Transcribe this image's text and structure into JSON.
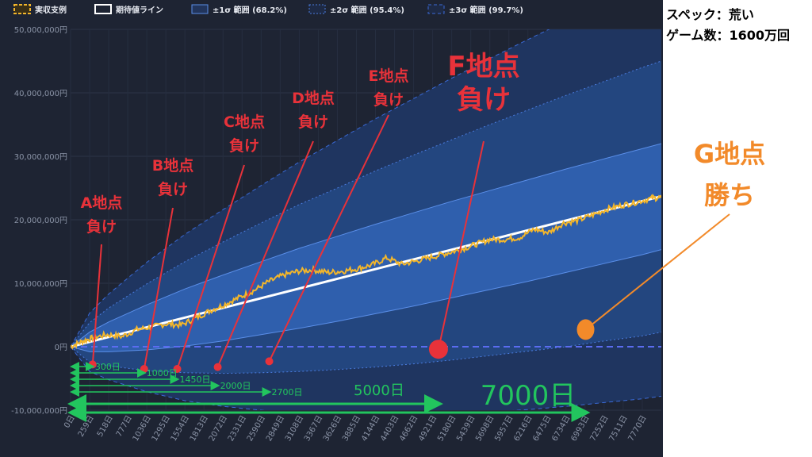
{
  "spec": {
    "line1": "スペック：荒い",
    "line2": "ゲーム数：1600万回"
  },
  "colors": {
    "background": "#1e2433",
    "actual": "#f3b62b",
    "expected": "#ffffff",
    "band1": "#2f5fad",
    "band2": "#23467f",
    "band3": "#1f3560",
    "zero_line": "#5b6cf0",
    "red": "#e8323a",
    "orange": "#f28a2a",
    "green": "#22c55e"
  },
  "chart_data": {
    "type": "line",
    "title": "",
    "legend": {
      "placement": "top-left",
      "items": [
        {
          "name": "実収支例",
          "icon": "dashed-box-gold"
        },
        {
          "name": "期待値ライン",
          "icon": "box-white"
        },
        {
          "name": "±1σ 範囲 (68.2%)",
          "icon": "box-blue"
        },
        {
          "name": "±2σ 範囲 (95.4%)",
          "icon": "dotted-box-blue"
        },
        {
          "name": "±3σ 範囲 (99.7%)",
          "icon": "dashed-box-blue"
        }
      ]
    },
    "xlim": [
      0,
      8029
    ],
    "ylim": [
      -10000000,
      50000000
    ],
    "x_ticks": [
      "0日",
      "259日",
      "518日",
      "777日",
      "1036日",
      "1295日",
      "1554日",
      "1813日",
      "2072日",
      "2331日",
      "2590日",
      "2849日",
      "3108日",
      "3367日",
      "3626日",
      "3885日",
      "4144日",
      "4403日",
      "4662日",
      "4921日",
      "5180日",
      "5439日",
      "5698日",
      "5957日",
      "6216日",
      "6475日",
      "6734日",
      "6993日",
      "7252日",
      "7511日",
      "7770日"
    ],
    "y_ticks": [
      {
        "v": 50000000,
        "label": "50,000,000円"
      },
      {
        "v": 40000000,
        "label": "40,000,000円"
      },
      {
        "v": 30000000,
        "label": "30,000,000円"
      },
      {
        "v": 20000000,
        "label": "20,000,000円"
      },
      {
        "v": 10000000,
        "label": "10,000,000円"
      },
      {
        "v": 0,
        "label": "0円"
      },
      {
        "v": -10000000,
        "label": "-10,000,000円"
      }
    ],
    "grid": true,
    "series": [
      {
        "name": "期待値ライン",
        "kind": "line",
        "x": [
          0,
          8029
        ],
        "y": [
          0,
          23700000
        ]
      },
      {
        "name": "±1σ 範囲 (68.2%)",
        "kind": "band",
        "x": [
          0,
          259,
          518,
          1036,
          1554,
          2072,
          2590,
          3108,
          3626,
          4144,
          4662,
          5180,
          5698,
          6216,
          6734,
          7252,
          7770,
          8029
        ],
        "upper": [
          0,
          2300000,
          3900000,
          6600000,
          9100000,
          11300000,
          13400000,
          15500000,
          17400000,
          19300000,
          21100000,
          22900000,
          24600000,
          26300000,
          28000000,
          29600000,
          31200000,
          32000000
        ],
        "lower": [
          0,
          -800000,
          -800000,
          -500000,
          100000,
          900000,
          1900000,
          2900000,
          4000000,
          5200000,
          6400000,
          7700000,
          9000000,
          10300000,
          11700000,
          13100000,
          14500000,
          15300000
        ]
      },
      {
        "name": "±2σ 範囲 (95.4%)",
        "kind": "band",
        "x": [
          0,
          259,
          518,
          1036,
          1554,
          2072,
          2590,
          3108,
          3626,
          4144,
          4662,
          5180,
          5698,
          6216,
          6734,
          7252,
          7770,
          8029
        ],
        "upper": [
          0,
          3800000,
          6100000,
          9900000,
          13400000,
          16500000,
          19500000,
          22400000,
          25000000,
          27700000,
          30200000,
          32600000,
          35000000,
          37300000,
          39600000,
          41800000,
          44000000,
          45000000
        ],
        "lower": [
          0,
          -2400000,
          -3000000,
          -3800000,
          -4100000,
          -4200000,
          -4100000,
          -3900000,
          -3600000,
          -3200000,
          -2700000,
          -2100000,
          -1400000,
          -700000,
          0,
          900000,
          1700000,
          2300000
        ]
      },
      {
        "name": "±3σ 範囲 (99.7%)",
        "kind": "band",
        "x": [
          0,
          259,
          518,
          1036,
          1554,
          2072,
          2590,
          3108,
          3626,
          4144,
          4662,
          5180,
          5698,
          6216,
          6734,
          7252,
          7770,
          8029
        ],
        "upper": [
          0,
          5300000,
          8300000,
          13300000,
          17700000,
          21600000,
          25400000,
          29100000,
          32500000,
          35900000,
          39100000,
          42300000,
          45400000,
          48400000,
          51300000,
          54200000,
          57000000,
          58400000
        ],
        "lower": [
          0,
          -3900000,
          -5200000,
          -7100000,
          -8500000,
          -9400000,
          -10000000,
          -10500000,
          -10800000,
          -10900000,
          -10800000,
          -10600000,
          -10300000,
          -9900000,
          -9400000,
          -8800000,
          -8200000,
          -7800000
        ]
      },
      {
        "name": "実収支例",
        "kind": "line",
        "x": [
          0,
          150,
          300,
          500,
          700,
          900,
          1100,
          1300,
          1500,
          1700,
          1900,
          2100,
          2300,
          2500,
          2700,
          2900,
          3100,
          3300,
          3500,
          3700,
          3900,
          4100,
          4300,
          4500,
          4700,
          4900,
          5100,
          5300,
          5500,
          5700,
          5900,
          6100,
          6300,
          6500,
          6700,
          6900,
          7100,
          7300,
          7500,
          7700,
          7900,
          8029
        ],
        "y": [
          0,
          800000,
          1400000,
          1900000,
          1600000,
          2700000,
          3100000,
          3600000,
          3400000,
          4500000,
          5700000,
          6700000,
          7800000,
          8900000,
          10300000,
          11300000,
          11900000,
          12100000,
          11700000,
          11900000,
          12300000,
          12900000,
          14000000,
          13000000,
          13500000,
          14100000,
          14700000,
          15300000,
          16100000,
          16900000,
          16900000,
          17200000,
          18500000,
          18000000,
          19500000,
          19900000,
          20800000,
          21700000,
          22300000,
          22800000,
          23400000,
          23500000
        ]
      }
    ],
    "annotations": {
      "losses": [
        {
          "label": "A地点\n負け",
          "x": 300,
          "y": -2800000,
          "days_label": "300日"
        },
        {
          "label": "B地点\n負け",
          "x": 1000,
          "y": -3500000,
          "days_label": "1000日"
        },
        {
          "label": "C地点\n負け",
          "x": 1450,
          "y": -3500000,
          "days_label": "1450日"
        },
        {
          "label": "D地点\n負け",
          "x": 2000,
          "y": -3200000,
          "days_label": "2000日"
        },
        {
          "label": "E地点\n負け",
          "x": 2700,
          "y": -2300000,
          "days_label": "2700日"
        },
        {
          "label": "F地点\n負け",
          "x": 5000,
          "y": -400000,
          "days_label": "5000日"
        }
      ],
      "win": {
        "label": "G地点\n勝ち",
        "x": 7000,
        "y": 2700000
      },
      "long_span": {
        "days_label": "7000日",
        "x": 7000
      }
    }
  }
}
